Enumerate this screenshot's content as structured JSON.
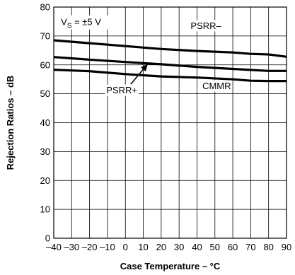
{
  "chart_data": {
    "type": "line",
    "title": "",
    "xlabel": "Case Temperature – °C",
    "ylabel": "Rejection Ratios – dB",
    "xlim": [
      -40,
      90
    ],
    "ylim": [
      0,
      80
    ],
    "x_ticks": [
      -40,
      -30,
      -20,
      -10,
      0,
      10,
      20,
      30,
      40,
      50,
      60,
      70,
      80,
      90
    ],
    "x_tick_labels": [
      "–40",
      "–30",
      "–20",
      "–10",
      "0",
      "10",
      "20",
      "30",
      "40",
      "50",
      "60",
      "70",
      "80",
      "90"
    ],
    "y_ticks": [
      0,
      10,
      20,
      30,
      40,
      50,
      60,
      70,
      80
    ],
    "y_tick_labels": [
      "0",
      "10",
      "20",
      "30",
      "40",
      "50",
      "60",
      "70",
      "80"
    ],
    "grid": true,
    "condition_label": {
      "main": "V",
      "sub": "S",
      "rest": " = ±5 V"
    },
    "series": [
      {
        "name": "PSRR–",
        "x": [
          -40,
          -20,
          0,
          20,
          40,
          60,
          70,
          80,
          90
        ],
        "y": [
          68.5,
          67.5,
          66.5,
          65.5,
          64.8,
          64.3,
          63.8,
          63.6,
          62.8
        ]
      },
      {
        "name": "PSRR+",
        "x": [
          -40,
          -20,
          0,
          20,
          40,
          60,
          80,
          90
        ],
        "y": [
          62.7,
          61.8,
          61.0,
          60.2,
          59.3,
          58.6,
          57.9,
          57.9
        ]
      },
      {
        "name": "CMMR",
        "x": [
          -40,
          -20,
          0,
          20,
          40,
          60,
          70,
          80,
          90
        ],
        "y": [
          58.3,
          57.8,
          56.8,
          56.0,
          55.6,
          55.0,
          54.5,
          54.4,
          54.4
        ]
      }
    ]
  }
}
